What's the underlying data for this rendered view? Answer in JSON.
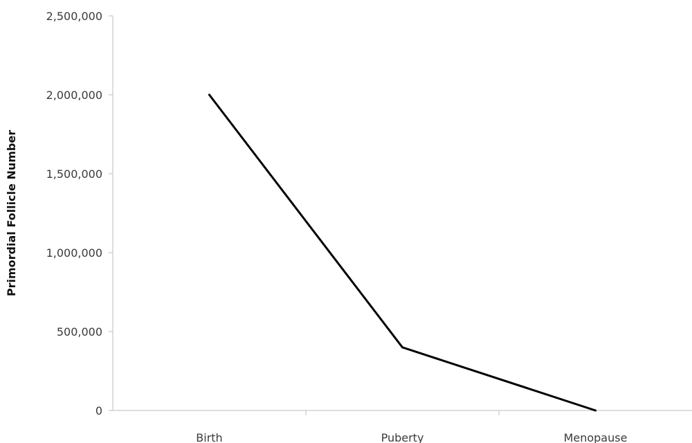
{
  "chart_data": {
    "type": "line",
    "title": "",
    "xlabel": "",
    "ylabel": "Primordial Follicle Number",
    "categories": [
      "Birth",
      "Puberty",
      "Menopause"
    ],
    "series": [
      {
        "values": [
          2000000,
          400000,
          0
        ]
      }
    ],
    "ylim": [
      0,
      2500000
    ],
    "yticks": [
      0,
      500000,
      1000000,
      1500000,
      2000000,
      2500000
    ],
    "ytick_labels": [
      "0",
      "500,000",
      "1,000,000",
      "1,500,000",
      "2,000,000",
      "2,500,000"
    ],
    "grid": false,
    "legend": "none",
    "line_color": "#000000",
    "axis_color": "#bdbdbd"
  }
}
